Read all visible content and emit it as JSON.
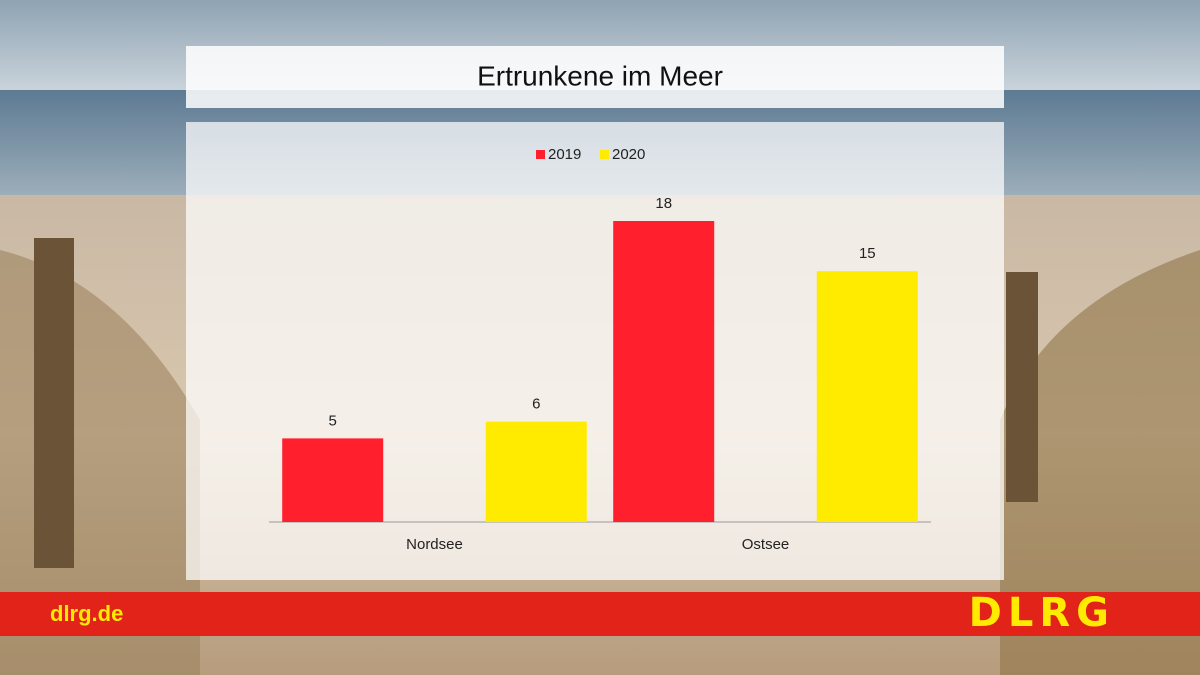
{
  "chart_data": {
    "type": "bar",
    "title": "Ertrunkene im Meer",
    "categories": [
      "Nordsee",
      "Ostsee"
    ],
    "series": [
      {
        "name": "2019",
        "color": "#ff1f2d",
        "values": [
          5,
          18
        ]
      },
      {
        "name": "2020",
        "color": "#ffeb00",
        "values": [
          6,
          15
        ]
      }
    ]
  },
  "branding": {
    "url": "dlrg.de",
    "logo": "DLRG"
  }
}
